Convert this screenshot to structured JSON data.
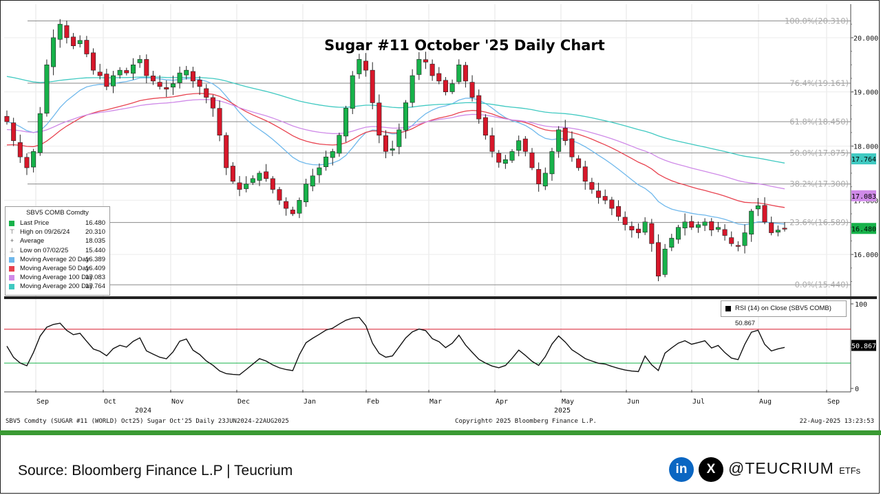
{
  "chart_data": {
    "type": "candlestick",
    "title": "Sugar #11 October '25 Daily Chart",
    "ylim": [
      15.24,
      20.62
    ],
    "y_ticks": [
      16.0,
      17.0,
      18.0,
      19.0,
      20.0
    ],
    "y_tick_labels": [
      "16.000",
      "17.000",
      "18.000",
      "19.000",
      "20.000"
    ],
    "x_month_labels": [
      "Sep",
      "Oct",
      "Nov",
      "Dec",
      "Jan",
      "Feb",
      "Mar",
      "Apr",
      "May",
      "Jun",
      "Jul",
      "Aug",
      "Sep"
    ],
    "x_year_labels": [
      "2024",
      "2025"
    ],
    "fibonacci": [
      {
        "label": "100.0%(20.310)",
        "value": 20.31
      },
      {
        "label": "76.4%(19.161)",
        "value": 19.161
      },
      {
        "label": "61.8%(18.450)",
        "value": 18.45
      },
      {
        "label": "50.0%(17.875)",
        "value": 17.875
      },
      {
        "label": "38.2%(17.300)",
        "value": 17.3
      },
      {
        "label": "23.6%(16.589)",
        "value": 16.589
      },
      {
        "label": "0.0%(15.440)",
        "value": 15.44
      }
    ],
    "closes": [
      18.45,
      18.1,
      17.8,
      17.6,
      17.9,
      18.6,
      19.5,
      20.0,
      20.25,
      20.0,
      19.85,
      19.95,
      19.7,
      19.4,
      19.3,
      19.1,
      19.3,
      19.4,
      19.35,
      19.5,
      19.6,
      19.3,
      19.2,
      19.1,
      19.05,
      19.15,
      19.35,
      19.4,
      19.2,
      19.1,
      18.9,
      18.7,
      18.2,
      17.6,
      17.35,
      17.2,
      17.3,
      17.4,
      17.5,
      17.4,
      17.2,
      17.0,
      16.85,
      16.75,
      17.0,
      17.3,
      17.45,
      17.6,
      17.8,
      17.9,
      18.2,
      18.7,
      19.3,
      19.6,
      19.4,
      18.8,
      18.2,
      17.9,
      17.95,
      18.3,
      18.8,
      19.3,
      19.6,
      19.55,
      19.3,
      19.2,
      19.0,
      19.15,
      19.5,
      19.2,
      18.9,
      18.5,
      18.2,
      17.9,
      17.7,
      17.75,
      17.9,
      18.1,
      17.9,
      17.6,
      17.3,
      17.5,
      17.9,
      18.3,
      18.1,
      17.8,
      17.6,
      17.35,
      17.2,
      17.05,
      17.0,
      16.85,
      16.7,
      16.55,
      16.45,
      16.4,
      16.6,
      16.2,
      15.6,
      16.1,
      16.3,
      16.5,
      16.6,
      16.5,
      16.55,
      16.6,
      16.45,
      16.5,
      16.35,
      16.2,
      16.15,
      16.4,
      16.8,
      16.9,
      16.6,
      16.4,
      16.45,
      16.48
    ],
    "last_close": 16.48,
    "moving_averages": [
      {
        "name": "Moving Average 20 Day",
        "period": 20,
        "color": "#6fb8ec",
        "last": 16.389
      },
      {
        "name": "Moving Average 50 Day",
        "period": 50,
        "color": "#e8424f",
        "last": 16.409
      },
      {
        "name": "Moving Average 100 Day",
        "period": 100,
        "color": "#cf8ae8",
        "last": 17.083
      },
      {
        "name": "Moving Average 200 Day",
        "period": 200,
        "color": "#3fc9c1",
        "last": 17.764
      }
    ],
    "rsi": {
      "label": "RSI (14)  on Close (SBV5 COMB) 50.867",
      "last": 50.867,
      "ylim": [
        0,
        100
      ],
      "ticks": [
        0,
        50,
        100
      ],
      "upper_band": 70,
      "lower_band": 30
    }
  },
  "price_axis_flags": [
    {
      "text": "17.764",
      "value": 17.764,
      "bg": "#3fc9c1"
    },
    {
      "text": "17.083",
      "value": 17.083,
      "bg": "#cf8ae8"
    },
    {
      "text": "16.480",
      "value": 16.48,
      "bg": "#17b24a"
    },
    {
      "text": "50.867",
      "value": 50.867,
      "bg": "#000000"
    }
  ],
  "legend": {
    "title": "SBV5 COMB Comdty",
    "rows": [
      {
        "label": "Last Price",
        "value": "16.480",
        "marker": "square",
        "color": "#17b24a"
      },
      {
        "label": "High on 09/26/24",
        "value": "20.310",
        "marker": "glyph",
        "glyph": "⊤"
      },
      {
        "label": "Average",
        "value": "18.035",
        "marker": "glyph",
        "glyph": "+"
      },
      {
        "label": "Low on 07/02/25",
        "value": "15.440",
        "marker": "glyph",
        "glyph": "⊥"
      },
      {
        "label": "Moving Average 20 Day",
        "value": "16.389",
        "marker": "square",
        "color": "#6fb8ec"
      },
      {
        "label": "Moving Average 50 Day",
        "value": "16.409",
        "marker": "square",
        "color": "#e8424f"
      },
      {
        "label": "Moving Average 100 Day",
        "value": "17.083",
        "marker": "square",
        "color": "#cf8ae8"
      },
      {
        "label": "Moving Average 200 Day",
        "value": "17.764",
        "marker": "square",
        "color": "#3fc9c1"
      }
    ]
  },
  "footer": {
    "left": "SBV5 Comdty (SUGAR #11 (WORLD) Oct25) Sugar Oct'25  Daily 23JUN2024-22AUG2025",
    "center": "Copyright© 2025 Bloomberg Finance L.P.",
    "right": "22-Aug-2025 13:23:53"
  },
  "source": "Source: Bloomberg Finance L.P | Teucrium",
  "social": {
    "linkedin": "in",
    "x": "X",
    "handle_main": "@TEUCRIUM",
    "handle_suffix": "ETFs"
  },
  "colors": {
    "up": "#17b24a",
    "down": "#d7172a",
    "footer_bar": "#3a9a33"
  }
}
